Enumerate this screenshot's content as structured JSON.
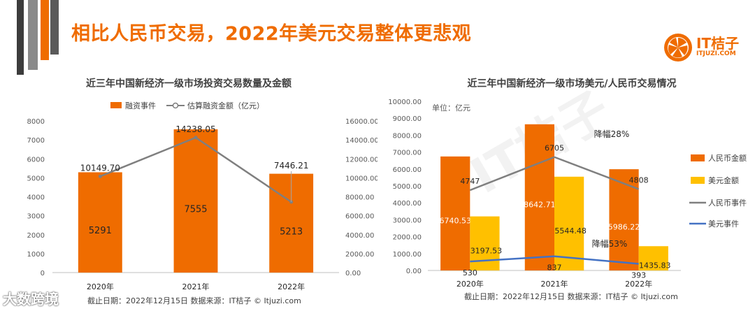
{
  "page": {
    "title": "相比人民币交易，2022年美元交易整体更悲观",
    "logo_text": "IT桔子",
    "logo_sub": "ITJUZI.COM",
    "watermark": "大数跨境"
  },
  "colors": {
    "orange": "#ef6c00",
    "yellow": "#ffc000",
    "gray_line": "#7f7f7f",
    "blue_line": "#4472c4",
    "title_orange": "#ef6c00"
  },
  "chart_data": [
    {
      "type": "bar",
      "title": "近三年中国新经济一级市场投资交易数量及金额",
      "categories": [
        "2020年",
        "2021年",
        "2022年"
      ],
      "series": [
        {
          "name": "融资事件",
          "type": "bar",
          "axis": "left",
          "values": [
            5291,
            7555,
            5213
          ],
          "labels": [
            "5291",
            "7555",
            "5213"
          ]
        },
        {
          "name": "估算融资金额（亿元）",
          "type": "line",
          "axis": "right",
          "values": [
            10149.7,
            14238.05,
            7446.21
          ],
          "labels": [
            "10149.70",
            "14238.05",
            "7446.21"
          ]
        }
      ],
      "left_axis": {
        "ylim": [
          0,
          8000
        ],
        "ticks": [
          "0",
          "1000",
          "2000",
          "3000",
          "4000",
          "5000",
          "6000",
          "7000",
          "8000"
        ]
      },
      "right_axis": {
        "ylim": [
          0,
          16000
        ],
        "ticks": [
          "0.00",
          "2000.00",
          "4000.00",
          "6000.00",
          "8000.00",
          "10000.00",
          "12000.00",
          "14000.00",
          "16000.00"
        ]
      },
      "legend_position": "top",
      "footnote": "截止日期：2022年12月15日    数据来源：IT桔子 © Itjuzi.com"
    },
    {
      "type": "bar",
      "title": "近三年中国新经济一级市场美元/人民币交易情况",
      "unit": "单位：亿元",
      "categories": [
        "2020年",
        "2021年",
        "2022年"
      ],
      "series": [
        {
          "name": "人民币金额",
          "type": "bar",
          "values": [
            6740.53,
            8642.71,
            5986.22
          ],
          "labels": [
            "6740.53",
            "8642.71",
            "5986.22"
          ]
        },
        {
          "name": "美元金额",
          "type": "bar",
          "values": [
            3197.53,
            5544.48,
            1435.83
          ],
          "labels": [
            "3197.53",
            "5544.48",
            "1435.83"
          ]
        },
        {
          "name": "人民币事件",
          "type": "line",
          "values": [
            4747,
            6705,
            4808
          ],
          "labels": [
            "4747",
            "6705",
            "4808"
          ]
        },
        {
          "name": "美元事件",
          "type": "line",
          "values": [
            530,
            837,
            393
          ],
          "labels": [
            "530",
            "837",
            "393"
          ]
        }
      ],
      "ylim": [
        0,
        10000
      ],
      "ticks": [
        "0.00",
        "1000.00",
        "2000.00",
        "3000.00",
        "4000.00",
        "5000.00",
        "6000.00",
        "7000.00",
        "8000.00",
        "9000.00",
        "10000.00"
      ],
      "annotations": [
        "降幅28%",
        "降幅53%"
      ],
      "legend_position": "right",
      "footnote": "截止日期：2022年12月15日    数据来源：IT桔子 © Itjuzi.com"
    }
  ]
}
